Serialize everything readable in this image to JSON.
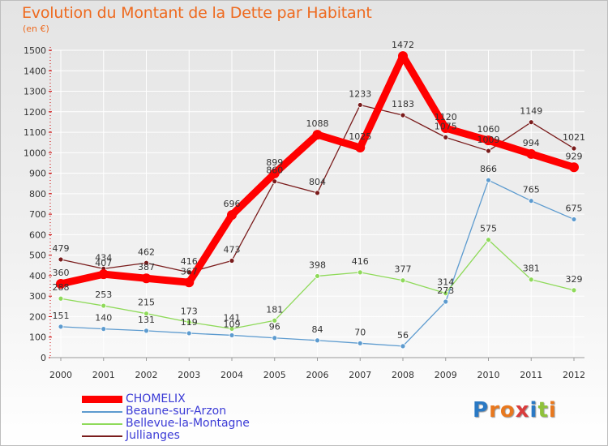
{
  "title": "Evolution du Montant de la Dette par Habitant",
  "unit": "(en €)",
  "logo": "Proxiti",
  "colors": {
    "title": "#ee6a1f",
    "legend_text": "#3b3bd6"
  },
  "chart_data": {
    "type": "line",
    "title": "Evolution du Montant de la Dette par Habitant",
    "ylabel": "(en €)",
    "xlabel": "",
    "x": [
      "2000",
      "2001",
      "2002",
      "2003",
      "2004",
      "2005",
      "2006",
      "2007",
      "2008",
      "2009",
      "2010",
      "2011",
      "2012"
    ],
    "ylim": [
      0,
      1500
    ],
    "yticks": [
      0,
      100,
      200,
      300,
      400,
      500,
      600,
      700,
      800,
      900,
      1000,
      1100,
      1200,
      1300,
      1400,
      1500
    ],
    "grid": true,
    "legend": "bottom-left",
    "series": [
      {
        "name": "CHOMELIX",
        "color": "#ff0000",
        "values": [
          360,
          407,
          387,
          367,
          696,
          899,
          1088,
          1025,
          1472,
          1120,
          1060,
          994,
          929
        ]
      },
      {
        "name": "Beaune-sur-Arzon",
        "color": "#5d9bcf",
        "values": [
          151,
          140,
          131,
          119,
          109,
          96,
          84,
          70,
          56,
          273,
          866,
          765,
          675
        ]
      },
      {
        "name": "Bellevue-la-Montagne",
        "color": "#8fda5a",
        "values": [
          288,
          253,
          215,
          173,
          141,
          181,
          398,
          416,
          377,
          314,
          575,
          381,
          329
        ]
      },
      {
        "name": "Jullianges",
        "color": "#7a1c1c",
        "values": [
          479,
          434,
          462,
          416,
          473,
          860,
          804,
          1233,
          1183,
          1075,
          1009,
          1149,
          1021
        ]
      }
    ]
  }
}
